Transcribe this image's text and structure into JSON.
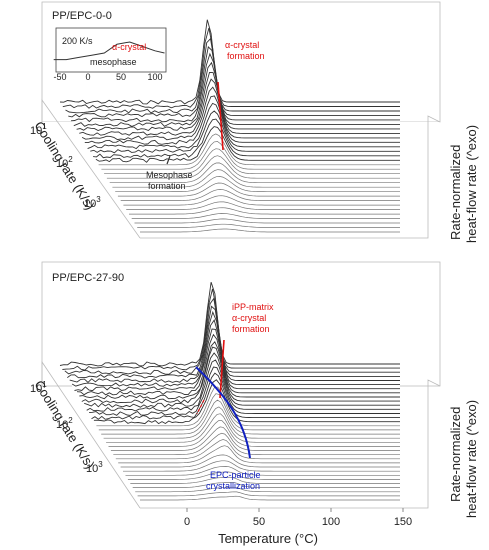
{
  "chart_data": [
    {
      "type": "line",
      "panel_title": "PP/EPC-0-0",
      "y_axis_label": "Cooling rate (K/s)",
      "y_ticks": [
        "10",
        "10",
        "10"
      ],
      "y_tick_exponents": [
        "1",
        "2",
        "3"
      ],
      "z_axis_label_line1": "Rate-normalized",
      "z_axis_label_line2": "heat-flow rate (^exo)",
      "inset": {
        "label_rate": "200 K/s",
        "label_alpha": "α-crystal",
        "label_meso": "mesophase",
        "x_ticks": [
          "-50",
          "0",
          "50",
          "100"
        ],
        "x": [
          -60,
          -40,
          -20,
          0,
          20,
          40,
          60,
          80,
          100,
          115
        ],
        "y": [
          0.2,
          0.2,
          0.3,
          0.4,
          0.5,
          0.9,
          1.0,
          0.8,
          0.6,
          0.5
        ]
      },
      "annotations": {
        "alpha_line1": "α-crystal",
        "alpha_line2": "formation",
        "meso_line1": "Mesophase",
        "meso_line2": "formation"
      },
      "num_curves": 30,
      "peak_temperature_C": 22,
      "colors": {
        "alpha": "#e01010"
      }
    },
    {
      "type": "line",
      "panel_title": "PP/EPC-27-90",
      "x_ticks": [
        "0",
        "50",
        "100",
        "150"
      ],
      "x_values": [
        0,
        50,
        100,
        150
      ],
      "x_axis_label": "Temperature (°C)",
      "y_axis_label": "Cooling rate (K/s)",
      "y_ticks": [
        "10",
        "10",
        "10"
      ],
      "y_tick_exponents": [
        "1",
        "2",
        "3"
      ],
      "z_axis_label_line1": "Rate-normalized",
      "z_axis_label_line2": "heat-flow rate (^exo)",
      "annotations": {
        "ipp_line1": "iPP-matrix",
        "ipp_line2": "α-crystal",
        "ipp_line3": "formation",
        "epc_line1": "EPC-particle",
        "epc_line2": "crystallization"
      },
      "num_curves": 34,
      "peak_temperature_C": 22,
      "colors": {
        "ipp": "#e01010",
        "epc": "#1020c0"
      }
    }
  ]
}
